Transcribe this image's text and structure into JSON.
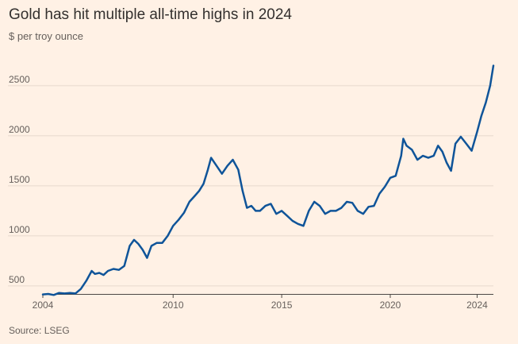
{
  "title": "Gold has hit multiple all-time highs in 2024",
  "subtitle": "$ per troy ounce",
  "source": "Source: LSEG",
  "colors": {
    "background": "#fff1e5",
    "line": "#0f5499",
    "grid": "#e6d9ce",
    "axis": "#4d4845"
  },
  "chart_data": {
    "type": "line",
    "title": "Gold has hit multiple all-time highs in 2024",
    "subtitle": "$ per troy ounce",
    "xlabel": "",
    "ylabel": "",
    "xlim": [
      2004,
      2024.75
    ],
    "ylim": [
      420,
      2800
    ],
    "x_ticks": [
      2004,
      2010,
      2015,
      2020,
      2024
    ],
    "y_ticks": [
      500,
      1000,
      1500,
      2000,
      2500
    ],
    "grid": true,
    "legend": "none",
    "series": [
      {
        "x": [
          2004,
          2004.25,
          2004.5,
          2004.75,
          2005,
          2005.25,
          2005.5,
          2005.75,
          2006,
          2006.25,
          2006.4,
          2006.6,
          2006.8,
          2007,
          2007.25,
          2007.5,
          2007.75,
          2008,
          2008.2,
          2008.4,
          2008.6,
          2008.8,
          2009,
          2009.25,
          2009.5,
          2009.75,
          2010,
          2010.25,
          2010.5,
          2010.75,
          2011,
          2011.2,
          2011.4,
          2011.6,
          2011.75,
          2012,
          2012.25,
          2012.5,
          2012.75,
          2013,
          2013.2,
          2013.4,
          2013.6,
          2013.8,
          2014,
          2014.25,
          2014.5,
          2014.75,
          2015,
          2015.25,
          2015.5,
          2015.75,
          2016,
          2016.25,
          2016.5,
          2016.75,
          2017,
          2017.25,
          2017.5,
          2017.75,
          2018,
          2018.25,
          2018.5,
          2018.75,
          2019,
          2019.25,
          2019.5,
          2019.75,
          2020,
          2020.25,
          2020.5,
          2020.6,
          2020.75,
          2021,
          2021.25,
          2021.5,
          2021.75,
          2022,
          2022.2,
          2022.4,
          2022.6,
          2022.8,
          2023,
          2023.25,
          2023.5,
          2023.75,
          2024,
          2024.2,
          2024.4,
          2024.6,
          2024.75
        ],
        "values": [
          415,
          420,
          410,
          430,
          425,
          430,
          425,
          470,
          550,
          650,
          620,
          630,
          610,
          650,
          670,
          660,
          700,
          900,
          960,
          920,
          860,
          780,
          900,
          930,
          930,
          1000,
          1100,
          1160,
          1230,
          1340,
          1400,
          1450,
          1520,
          1660,
          1780,
          1700,
          1620,
          1700,
          1760,
          1660,
          1450,
          1280,
          1300,
          1250,
          1250,
          1300,
          1320,
          1220,
          1250,
          1200,
          1150,
          1120,
          1100,
          1250,
          1340,
          1300,
          1220,
          1250,
          1250,
          1280,
          1340,
          1330,
          1250,
          1220,
          1290,
          1300,
          1420,
          1490,
          1580,
          1600,
          1800,
          1970,
          1900,
          1860,
          1760,
          1800,
          1780,
          1800,
          1900,
          1840,
          1730,
          1650,
          1920,
          1990,
          1920,
          1850,
          2040,
          2200,
          2330,
          2500,
          2700
        ]
      }
    ]
  }
}
